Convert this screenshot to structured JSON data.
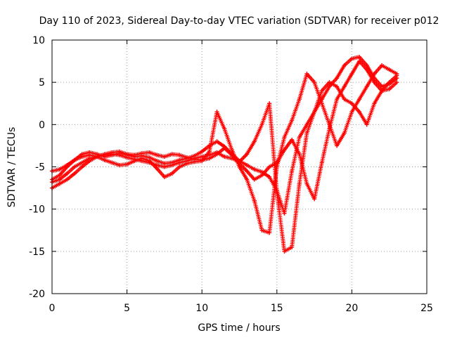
{
  "chart_data": {
    "type": "scatter",
    "title": "Day 110 of 2023, Sidereal Day-to-day VTEC variation (SDTVAR) for receiver p012",
    "xlabel": "GPS time / hours",
    "ylabel": "SDTVAR / TECUs",
    "xlim": [
      0,
      25
    ],
    "ylim": [
      -20,
      10
    ],
    "xticks": [
      "0",
      "5",
      "10",
      "15",
      "20",
      "25"
    ],
    "yticks": [
      "10",
      "5",
      "0",
      "-5",
      "-10",
      "-15",
      "-20"
    ],
    "grid": true,
    "legend": "none",
    "marker": "plus",
    "series_color": "#ff0000",
    "series": [
      {
        "x": [
          0.0,
          0.5,
          1.0,
          1.5,
          2.0,
          2.5,
          3.0,
          3.5,
          4.0,
          4.5,
          5.0,
          5.5,
          6.0,
          6.5,
          7.0,
          7.5,
          8.0,
          8.5,
          9.0,
          9.5,
          10.0,
          10.5,
          11.0,
          11.5,
          12.0,
          12.5,
          13.0,
          13.5,
          14.0,
          14.5,
          15.0,
          15.5,
          16.0,
          16.5,
          17.0,
          17.5,
          18.0,
          18.5,
          19.0,
          19.5,
          20.0,
          20.5,
          21.0,
          21.5,
          22.0,
          22.5,
          23.0
        ],
        "y": [
          -6.5,
          -6.0,
          -5.0,
          -4.2,
          -3.5,
          -3.3,
          -3.5,
          -3.8,
          -3.6,
          -3.4,
          -3.6,
          -3.8,
          -3.7,
          -3.9,
          -4.3,
          -4.6,
          -4.5,
          -4.2,
          -4.0,
          -3.7,
          -3.2,
          -2.5,
          -2.0,
          -2.6,
          -3.5,
          -4.3,
          -4.8,
          -5.3,
          -5.6,
          -6.2,
          -7.8,
          -10.5,
          -5.5,
          -1.5,
          0.0,
          1.5,
          3.0,
          4.5,
          5.5,
          7.0,
          7.8,
          8.0,
          7.0,
          5.5,
          4.5,
          4.8,
          5.5
        ]
      },
      {
        "x": [
          0.0,
          0.5,
          1.0,
          1.5,
          2.0,
          2.5,
          3.0,
          3.5,
          4.0,
          4.5,
          5.0,
          5.5,
          6.0,
          6.5,
          7.0,
          7.5,
          8.0,
          8.5,
          9.0,
          9.5,
          10.0,
          10.5,
          11.0,
          11.5,
          12.0,
          12.5,
          13.0,
          13.5,
          14.0,
          14.5,
          15.0,
          15.5,
          16.0,
          16.5,
          17.0,
          17.5,
          18.0,
          18.5,
          19.0,
          19.5,
          20.0,
          20.5,
          21.0,
          21.5,
          22.0,
          22.5,
          23.0
        ],
        "y": [
          -7.5,
          -7.0,
          -6.5,
          -5.8,
          -5.0,
          -4.3,
          -3.8,
          -3.5,
          -3.3,
          -3.2,
          -3.5,
          -3.6,
          -3.4,
          -3.3,
          -3.6,
          -3.8,
          -3.5,
          -3.6,
          -3.9,
          -4.1,
          -4.2,
          -4.0,
          -3.5,
          -2.8,
          -3.6,
          -4.6,
          -5.5,
          -6.5,
          -6.0,
          -5.0,
          -4.5,
          -3.0,
          -1.8,
          -3.5,
          -7.0,
          -8.8,
          -4.5,
          -0.5,
          3.0,
          4.5,
          6.0,
          7.5,
          6.5,
          5.0,
          4.0,
          4.2,
          5.0
        ]
      },
      {
        "x": [
          0.0,
          0.5,
          1.0,
          1.5,
          2.0,
          2.5,
          3.0,
          3.5,
          4.0,
          4.5,
          5.0,
          5.5,
          6.0,
          6.5,
          7.0,
          7.5,
          8.0,
          8.5,
          9.0,
          9.5,
          10.0,
          10.5,
          11.0,
          11.5,
          12.0,
          12.5,
          13.0,
          13.5,
          14.0,
          14.5,
          15.0,
          15.5,
          16.0,
          16.5,
          17.0,
          17.5,
          18.0,
          18.5,
          19.0,
          19.5,
          20.0,
          20.5,
          21.0,
          21.5,
          22.0,
          22.5,
          23.0
        ],
        "y": [
          -5.5,
          -5.3,
          -4.8,
          -4.2,
          -3.8,
          -3.6,
          -3.8,
          -4.2,
          -4.5,
          -4.8,
          -4.7,
          -4.3,
          -4.0,
          -4.3,
          -5.2,
          -6.2,
          -5.8,
          -5.0,
          -4.6,
          -4.4,
          -4.3,
          -3.2,
          1.5,
          -0.5,
          -3.0,
          -5.0,
          -6.5,
          -9.0,
          -12.5,
          -12.8,
          -5.0,
          -1.5,
          0.5,
          3.0,
          6.0,
          5.0,
          2.5,
          0.0,
          -2.5,
          -1.0,
          1.5,
          3.0,
          4.5,
          6.0,
          7.0,
          6.5,
          6.0
        ]
      },
      {
        "x": [
          0.0,
          0.5,
          1.0,
          1.5,
          2.0,
          2.5,
          3.0,
          3.5,
          4.0,
          4.5,
          5.0,
          5.5,
          6.0,
          6.5,
          7.0,
          7.5,
          8.0,
          8.5,
          9.0,
          9.5,
          10.0,
          10.5,
          11.0,
          11.5,
          12.0,
          12.5,
          13.0,
          13.5,
          14.0,
          14.5,
          15.0,
          15.5,
          16.0,
          16.5,
          17.0,
          17.5,
          18.0,
          18.5,
          19.0,
          19.5,
          20.0,
          20.5,
          21.0,
          21.5,
          22.0,
          22.5,
          23.0
        ],
        "y": [
          -6.8,
          -6.5,
          -5.8,
          -5.0,
          -4.5,
          -4.0,
          -3.8,
          -3.6,
          -3.5,
          -3.6,
          -3.9,
          -4.1,
          -4.3,
          -4.5,
          -4.8,
          -5.0,
          -4.8,
          -4.5,
          -4.3,
          -4.0,
          -3.8,
          -3.6,
          -3.3,
          -3.8,
          -4.0,
          -4.4,
          -3.5,
          -2.0,
          0.0,
          2.5,
          -8.0,
          -15.0,
          -14.5,
          -7.0,
          -1.0,
          1.5,
          4.0,
          5.0,
          4.5,
          3.0,
          2.5,
          1.5,
          0.0,
          2.5,
          4.0,
          5.0,
          5.8
        ]
      }
    ]
  }
}
